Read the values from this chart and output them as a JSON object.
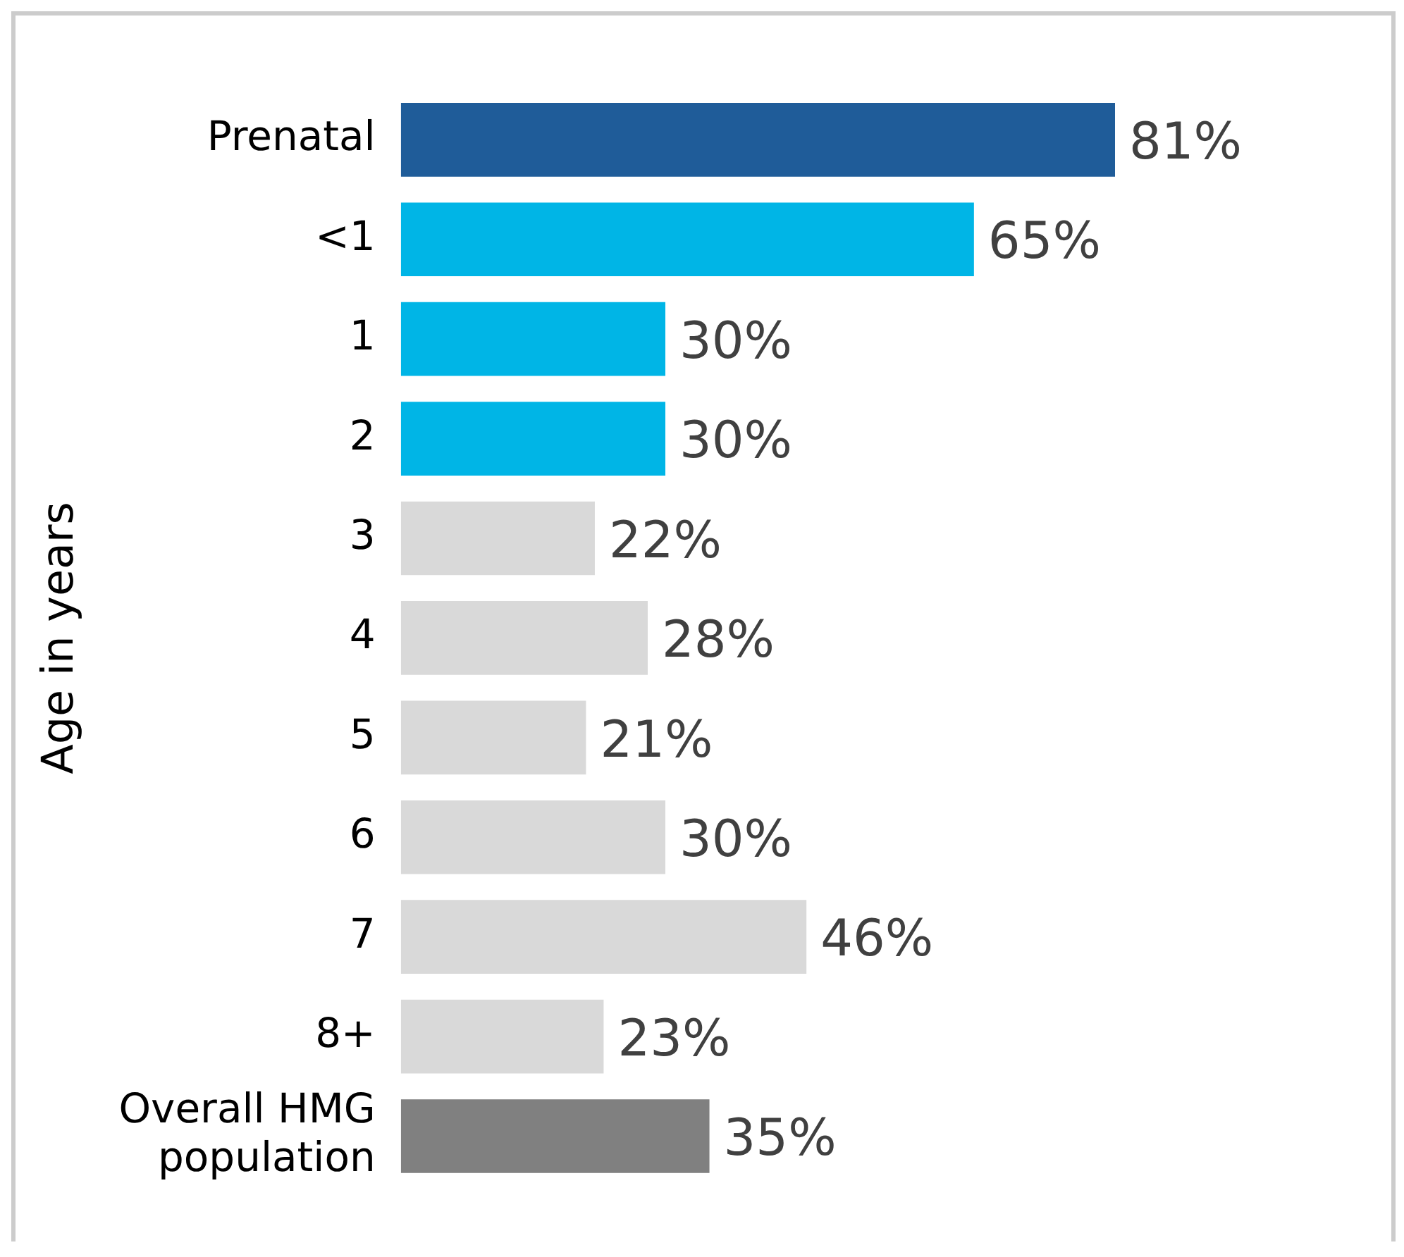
{
  "chart_data": {
    "type": "bar",
    "orientation": "horizontal",
    "ylabel": "Age in years",
    "categories": [
      "Prenatal",
      "<1",
      "1",
      "2",
      "3",
      "4",
      "5",
      "6",
      "7",
      "8+",
      "Overall HMG population"
    ],
    "values": [
      81,
      65,
      30,
      30,
      22,
      28,
      21,
      30,
      46,
      23,
      35
    ],
    "colors": [
      "#1f5c99",
      "#00b5e6",
      "#00b5e6",
      "#00b5e6",
      "#d9d9d9",
      "#d9d9d9",
      "#d9d9d9",
      "#d9d9d9",
      "#d9d9d9",
      "#d9d9d9",
      "#808080"
    ],
    "value_labels": [
      "81%",
      "65%",
      "30%",
      "30%",
      "22%",
      "28%",
      "21%",
      "30%",
      "46%",
      "23%",
      "35%"
    ]
  }
}
